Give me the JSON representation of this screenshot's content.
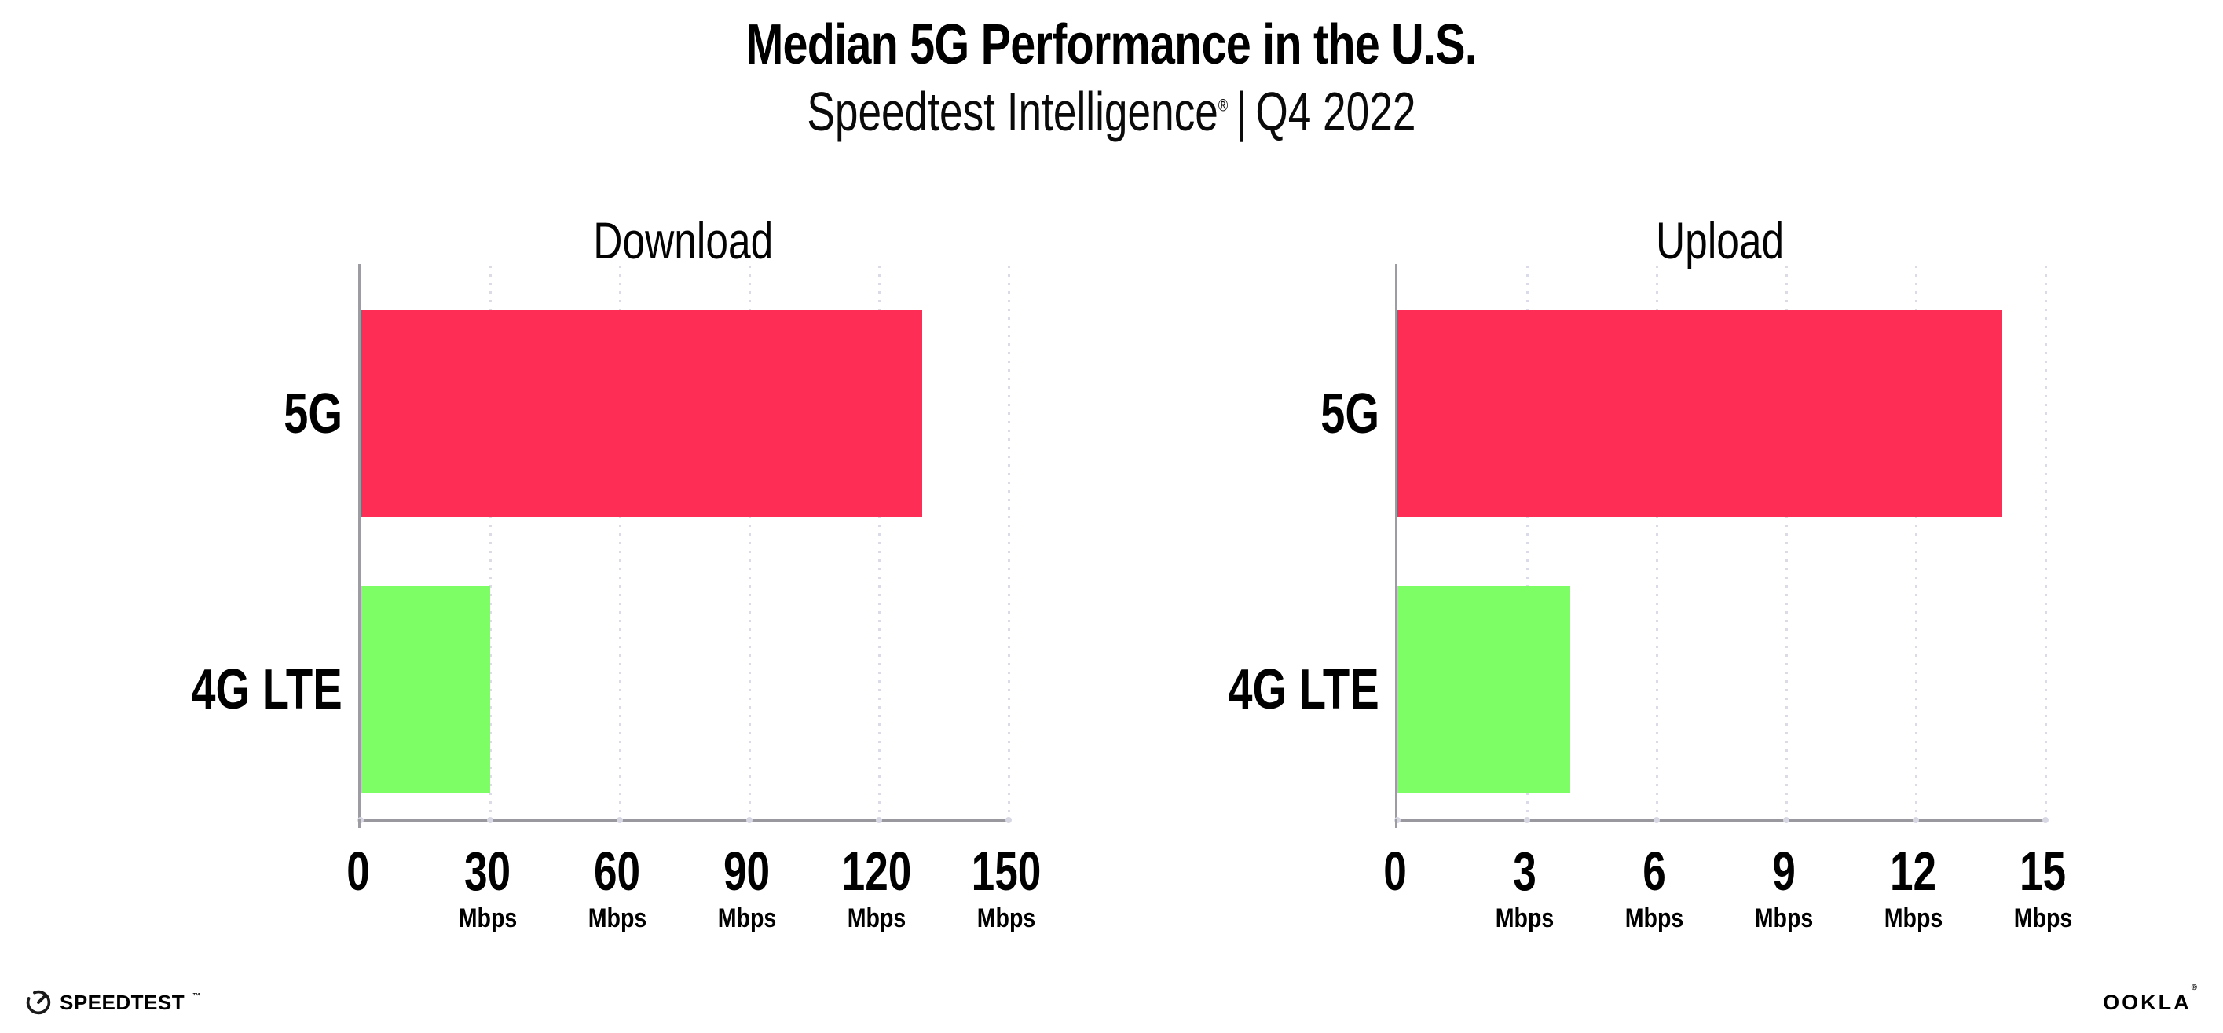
{
  "header": {
    "title": "Median 5G Performance in the U.S.",
    "subtitle_brand": "Speedtest Intelligence",
    "subtitle_registered": "®",
    "subtitle_separator": "|",
    "subtitle_period": "Q4 2022"
  },
  "chart_data": [
    {
      "type": "bar",
      "orientation": "horizontal",
      "title": "Download",
      "categories": [
        "5G",
        "4G LTE"
      ],
      "values": [
        130,
        30
      ],
      "unit": "Mbps",
      "xlim": [
        0,
        150
      ],
      "xticks": [
        0,
        30,
        60,
        90,
        120,
        150
      ],
      "bar_colors": [
        "#fe2d55",
        "#7dfe65"
      ],
      "grid": "dotted-vertical-major",
      "legend": null
    },
    {
      "type": "bar",
      "orientation": "horizontal",
      "title": "Upload",
      "categories": [
        "5G",
        "4G LTE"
      ],
      "values": [
        14,
        4
      ],
      "unit": "Mbps",
      "xlim": [
        0,
        15
      ],
      "xticks": [
        0,
        3,
        6,
        9,
        12,
        15
      ],
      "bar_colors": [
        "#fe2d55",
        "#7dfe65"
      ],
      "grid": "dotted-vertical-major",
      "legend": null
    }
  ],
  "footer": {
    "speedtest_logo_text": "SPEEDTEST",
    "speedtest_trademark": "™",
    "ookla_logo_text": "OOKLA",
    "ookla_registered": "®"
  },
  "colors": {
    "bar_5g": "#fe2d55",
    "bar_4g_lte": "#7dfe65",
    "axis": "#9c9ca2",
    "gridline": "#dbdbe7",
    "text": "#000000",
    "background": "#ffffff"
  }
}
